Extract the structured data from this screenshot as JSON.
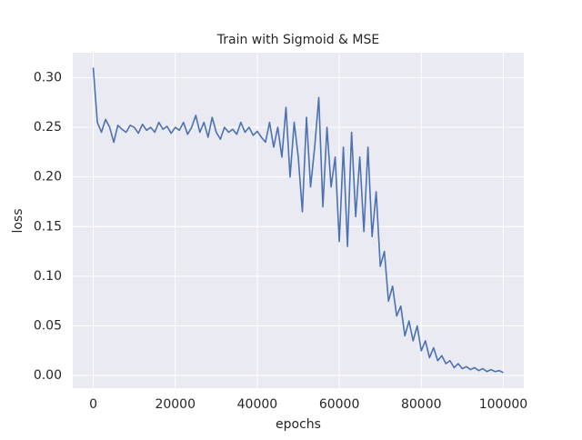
{
  "chart_data": {
    "type": "line",
    "title": "Train with Sigmoid & MSE",
    "x_label": "epochs",
    "y_label": "loss",
    "x": [
      0,
      1000,
      2000,
      3000,
      4000,
      5000,
      6000,
      7000,
      8000,
      9000,
      10000,
      11000,
      12000,
      13000,
      14000,
      15000,
      16000,
      17000,
      18000,
      19000,
      20000,
      21000,
      22000,
      23000,
      24000,
      25000,
      26000,
      27000,
      28000,
      29000,
      30000,
      31000,
      32000,
      33000,
      34000,
      35000,
      36000,
      37000,
      38000,
      39000,
      40000,
      41000,
      42000,
      43000,
      44000,
      45000,
      46000,
      47000,
      48000,
      49000,
      50000,
      51000,
      52000,
      53000,
      54000,
      55000,
      56000,
      57000,
      58000,
      59000,
      60000,
      61000,
      62000,
      63000,
      64000,
      65000,
      66000,
      67000,
      68000,
      69000,
      70000,
      71000,
      72000,
      73000,
      74000,
      75000,
      76000,
      77000,
      78000,
      79000,
      80000,
      81000,
      82000,
      83000,
      84000,
      85000,
      86000,
      87000,
      88000,
      89000,
      90000,
      91000,
      92000,
      93000,
      94000,
      95000,
      96000,
      97000,
      98000,
      99000,
      100000
    ],
    "series": [
      {
        "name": "loss",
        "color": "#4c72b0",
        "values": [
          0.31,
          0.255,
          0.245,
          0.258,
          0.25,
          0.235,
          0.252,
          0.248,
          0.245,
          0.252,
          0.25,
          0.244,
          0.253,
          0.247,
          0.25,
          0.245,
          0.255,
          0.248,
          0.251,
          0.244,
          0.25,
          0.247,
          0.255,
          0.243,
          0.25,
          0.262,
          0.245,
          0.255,
          0.24,
          0.26,
          0.245,
          0.238,
          0.25,
          0.245,
          0.248,
          0.243,
          0.255,
          0.245,
          0.25,
          0.242,
          0.246,
          0.24,
          0.235,
          0.255,
          0.23,
          0.25,
          0.22,
          0.27,
          0.2,
          0.255,
          0.22,
          0.165,
          0.26,
          0.19,
          0.23,
          0.28,
          0.17,
          0.25,
          0.19,
          0.22,
          0.135,
          0.23,
          0.13,
          0.245,
          0.16,
          0.22,
          0.145,
          0.23,
          0.14,
          0.185,
          0.11,
          0.125,
          0.075,
          0.09,
          0.06,
          0.07,
          0.04,
          0.055,
          0.035,
          0.05,
          0.025,
          0.035,
          0.018,
          0.028,
          0.015,
          0.02,
          0.012,
          0.015,
          0.008,
          0.012,
          0.007,
          0.009,
          0.006,
          0.008,
          0.005,
          0.007,
          0.004,
          0.006,
          0.004,
          0.005,
          0.003
        ]
      }
    ],
    "xlim": [
      -5000,
      105000
    ],
    "xticks": [
      0,
      20000,
      40000,
      60000,
      80000,
      100000
    ],
    "ylim": [
      -0.0127,
      0.3251
    ],
    "yticks": [
      {
        "value": 0,
        "label": "0.00"
      },
      0.05,
      {
        "value": 0.1,
        "label": "0.10"
      },
      0.15,
      {
        "value": 0.2,
        "label": "0.20"
      },
      0.25,
      {
        "value": 0.3,
        "label": "0.30"
      }
    ],
    "grid": true
  }
}
